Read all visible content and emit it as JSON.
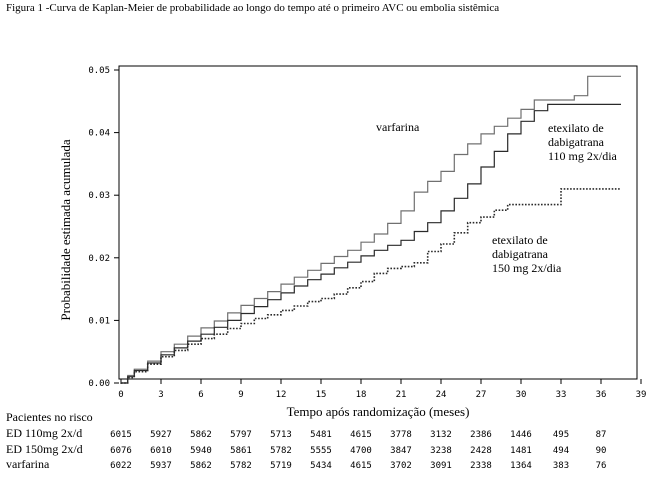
{
  "figure_title": "Figura 1 -Curva de Kaplan-Meier de probabilidade ao longo do tempo até o primeiro AVC ou embolia sistêmica",
  "chart_data": {
    "type": "line",
    "title": "Figura 1 -Curva de Kaplan-Meier de probabilidade ao longo do tempo até o primeiro AVC ou embolia sistêmica",
    "xlabel": "Tempo após randomização (meses)",
    "ylabel": "Probabilidade estimada acumulada",
    "xlim": [
      0,
      39
    ],
    "ylim": [
      0,
      0.05
    ],
    "xticks": [
      0,
      3,
      6,
      9,
      12,
      15,
      18,
      21,
      24,
      27,
      30,
      33,
      36,
      39
    ],
    "yticks": [
      "0.00",
      "0.01",
      "0.02",
      "0.03",
      "0.04",
      "0.05"
    ],
    "grid": false,
    "series": [
      {
        "name": "varfarina",
        "label_lines": [
          "varfarina"
        ],
        "style": "solid",
        "color": "#707070",
        "points": [
          [
            0,
            0
          ],
          [
            0.5,
            0.0012
          ],
          [
            1,
            0.0022
          ],
          [
            2,
            0.0035
          ],
          [
            3,
            0.005
          ],
          [
            4,
            0.0062
          ],
          [
            5,
            0.0075
          ],
          [
            6,
            0.0088
          ],
          [
            7,
            0.0099
          ],
          [
            8,
            0.0112
          ],
          [
            9,
            0.0124
          ],
          [
            10,
            0.0135
          ],
          [
            11,
            0.0146
          ],
          [
            12,
            0.0158
          ],
          [
            13,
            0.0169
          ],
          [
            14,
            0.018
          ],
          [
            15,
            0.0191
          ],
          [
            16,
            0.0202
          ],
          [
            17,
            0.0212
          ],
          [
            18,
            0.0225
          ],
          [
            19,
            0.0238
          ],
          [
            20,
            0.0255
          ],
          [
            21,
            0.0275
          ],
          [
            22,
            0.0305
          ],
          [
            23,
            0.0322
          ],
          [
            24,
            0.0338
          ],
          [
            25,
            0.0365
          ],
          [
            26,
            0.0382
          ],
          [
            27,
            0.0398
          ],
          [
            28,
            0.041
          ],
          [
            29,
            0.0423
          ],
          [
            30,
            0.0437
          ],
          [
            31,
            0.0452
          ],
          [
            32,
            0.0452
          ],
          [
            33,
            0.0452
          ],
          [
            34,
            0.0459
          ],
          [
            35,
            0.049
          ],
          [
            37.5,
            0.049
          ]
        ]
      },
      {
        "name": "etexilato de dabigatrana 110 mg 2x/dia",
        "label_lines": [
          "etexilato de",
          "dabigatrana",
          "110 mg 2x/dia"
        ],
        "style": "solid",
        "color": "#2a2a2a",
        "points": [
          [
            0,
            0
          ],
          [
            0.5,
            0.001
          ],
          [
            1,
            0.002
          ],
          [
            2,
            0.0032
          ],
          [
            3,
            0.0045
          ],
          [
            4,
            0.0056
          ],
          [
            5,
            0.0067
          ],
          [
            6,
            0.0078
          ],
          [
            7,
            0.0089
          ],
          [
            8,
            0.01
          ],
          [
            9,
            0.0111
          ],
          [
            10,
            0.0122
          ],
          [
            11,
            0.0133
          ],
          [
            12,
            0.0144
          ],
          [
            13,
            0.0155
          ],
          [
            14,
            0.0165
          ],
          [
            15,
            0.0174
          ],
          [
            16,
            0.0184
          ],
          [
            17,
            0.0193
          ],
          [
            18,
            0.0203
          ],
          [
            19,
            0.0212
          ],
          [
            20,
            0.022
          ],
          [
            21,
            0.0228
          ],
          [
            22,
            0.0242
          ],
          [
            23,
            0.0256
          ],
          [
            24,
            0.0275
          ],
          [
            25,
            0.0295
          ],
          [
            26,
            0.0318
          ],
          [
            27,
            0.0345
          ],
          [
            28,
            0.037
          ],
          [
            29,
            0.0398
          ],
          [
            30,
            0.0418
          ],
          [
            31,
            0.0435
          ],
          [
            32,
            0.0445
          ],
          [
            34,
            0.0445
          ],
          [
            37.5,
            0.0445
          ]
        ]
      },
      {
        "name": "etexilato de dabigatrana 150 mg 2x/dia",
        "label_lines": [
          "etexilato de",
          "dabigatrana",
          "150 mg 2x/dia"
        ],
        "style": "dotted",
        "color": "#2a2a2a",
        "points": [
          [
            0,
            0
          ],
          [
            0.5,
            0.0009
          ],
          [
            1,
            0.0018
          ],
          [
            2,
            0.003
          ],
          [
            3,
            0.0042
          ],
          [
            4,
            0.0052
          ],
          [
            5,
            0.0062
          ],
          [
            6,
            0.0071
          ],
          [
            7,
            0.0078
          ],
          [
            8,
            0.0087
          ],
          [
            9,
            0.0095
          ],
          [
            10,
            0.0103
          ],
          [
            11,
            0.0109
          ],
          [
            12,
            0.0116
          ],
          [
            13,
            0.0123
          ],
          [
            14,
            0.013
          ],
          [
            15,
            0.0135
          ],
          [
            16,
            0.0142
          ],
          [
            17,
            0.0152
          ],
          [
            18,
            0.0162
          ],
          [
            19,
            0.0175
          ],
          [
            20,
            0.0183
          ],
          [
            21,
            0.0186
          ],
          [
            22,
            0.0192
          ],
          [
            23,
            0.021
          ],
          [
            24,
            0.0222
          ],
          [
            25,
            0.024
          ],
          [
            26,
            0.0256
          ],
          [
            27,
            0.0265
          ],
          [
            28,
            0.0276
          ],
          [
            29,
            0.0285
          ],
          [
            31,
            0.0285
          ],
          [
            32,
            0.0285
          ],
          [
            33,
            0.031
          ],
          [
            37.5,
            0.031
          ]
        ]
      }
    ],
    "at_risk": {
      "header": "Pacientes no risco",
      "times": [
        0,
        3,
        6,
        9,
        12,
        15,
        18,
        21,
        24,
        27,
        30,
        33,
        36
      ],
      "rows": [
        {
          "label": "ED 110mg 2x/d",
          "values": [
            "6015",
            "5927",
            "5862",
            "5797",
            "5713",
            "5481",
            "4615",
            "3778",
            "3132",
            "2386",
            "1446",
            "495",
            "87"
          ]
        },
        {
          "label": "ED 150mg 2x/d",
          "values": [
            "6076",
            "6010",
            "5940",
            "5861",
            "5782",
            "5555",
            "4700",
            "3847",
            "3238",
            "2428",
            "1481",
            "494",
            "90"
          ]
        },
        {
          "label": "varfarina",
          "values": [
            "6022",
            "5937",
            "5862",
            "5782",
            "5719",
            "5434",
            "4615",
            "3702",
            "3091",
            "2338",
            "1364",
            "383",
            "76"
          ]
        }
      ]
    }
  }
}
